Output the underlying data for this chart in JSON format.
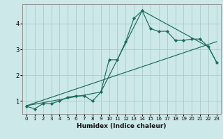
{
  "xlabel": "Humidex (Indice chaleur)",
  "ylabel": "",
  "bg_color": "#cce8e8",
  "grid_color": "#aacccc",
  "line_color": "#1a6b5a",
  "marker_color": "#1a6b5a",
  "xlim": [
    -0.5,
    23.5
  ],
  "ylim": [
    0.5,
    4.75
  ],
  "xticks": [
    0,
    1,
    2,
    3,
    4,
    5,
    6,
    7,
    8,
    9,
    10,
    11,
    12,
    13,
    14,
    15,
    16,
    17,
    18,
    19,
    20,
    21,
    22,
    23
  ],
  "yticks": [
    1,
    2,
    3,
    4
  ],
  "line1_x": [
    0,
    1,
    2,
    3,
    4,
    5,
    6,
    7,
    8,
    9,
    10,
    11,
    12,
    13,
    14,
    15,
    16,
    17,
    18,
    19,
    20,
    21,
    22,
    23
  ],
  "line1_y": [
    0.8,
    0.7,
    0.9,
    0.9,
    1.0,
    1.15,
    1.2,
    1.2,
    1.0,
    1.35,
    2.6,
    2.6,
    3.3,
    4.2,
    4.5,
    3.8,
    3.7,
    3.7,
    3.35,
    3.35,
    3.4,
    3.4,
    3.1,
    2.5
  ],
  "line2_x": [
    0,
    23
  ],
  "line2_y": [
    0.82,
    3.3
  ],
  "line3_x": [
    0,
    9,
    14,
    22,
    23
  ],
  "line3_y": [
    0.82,
    1.35,
    4.5,
    3.1,
    2.5
  ]
}
